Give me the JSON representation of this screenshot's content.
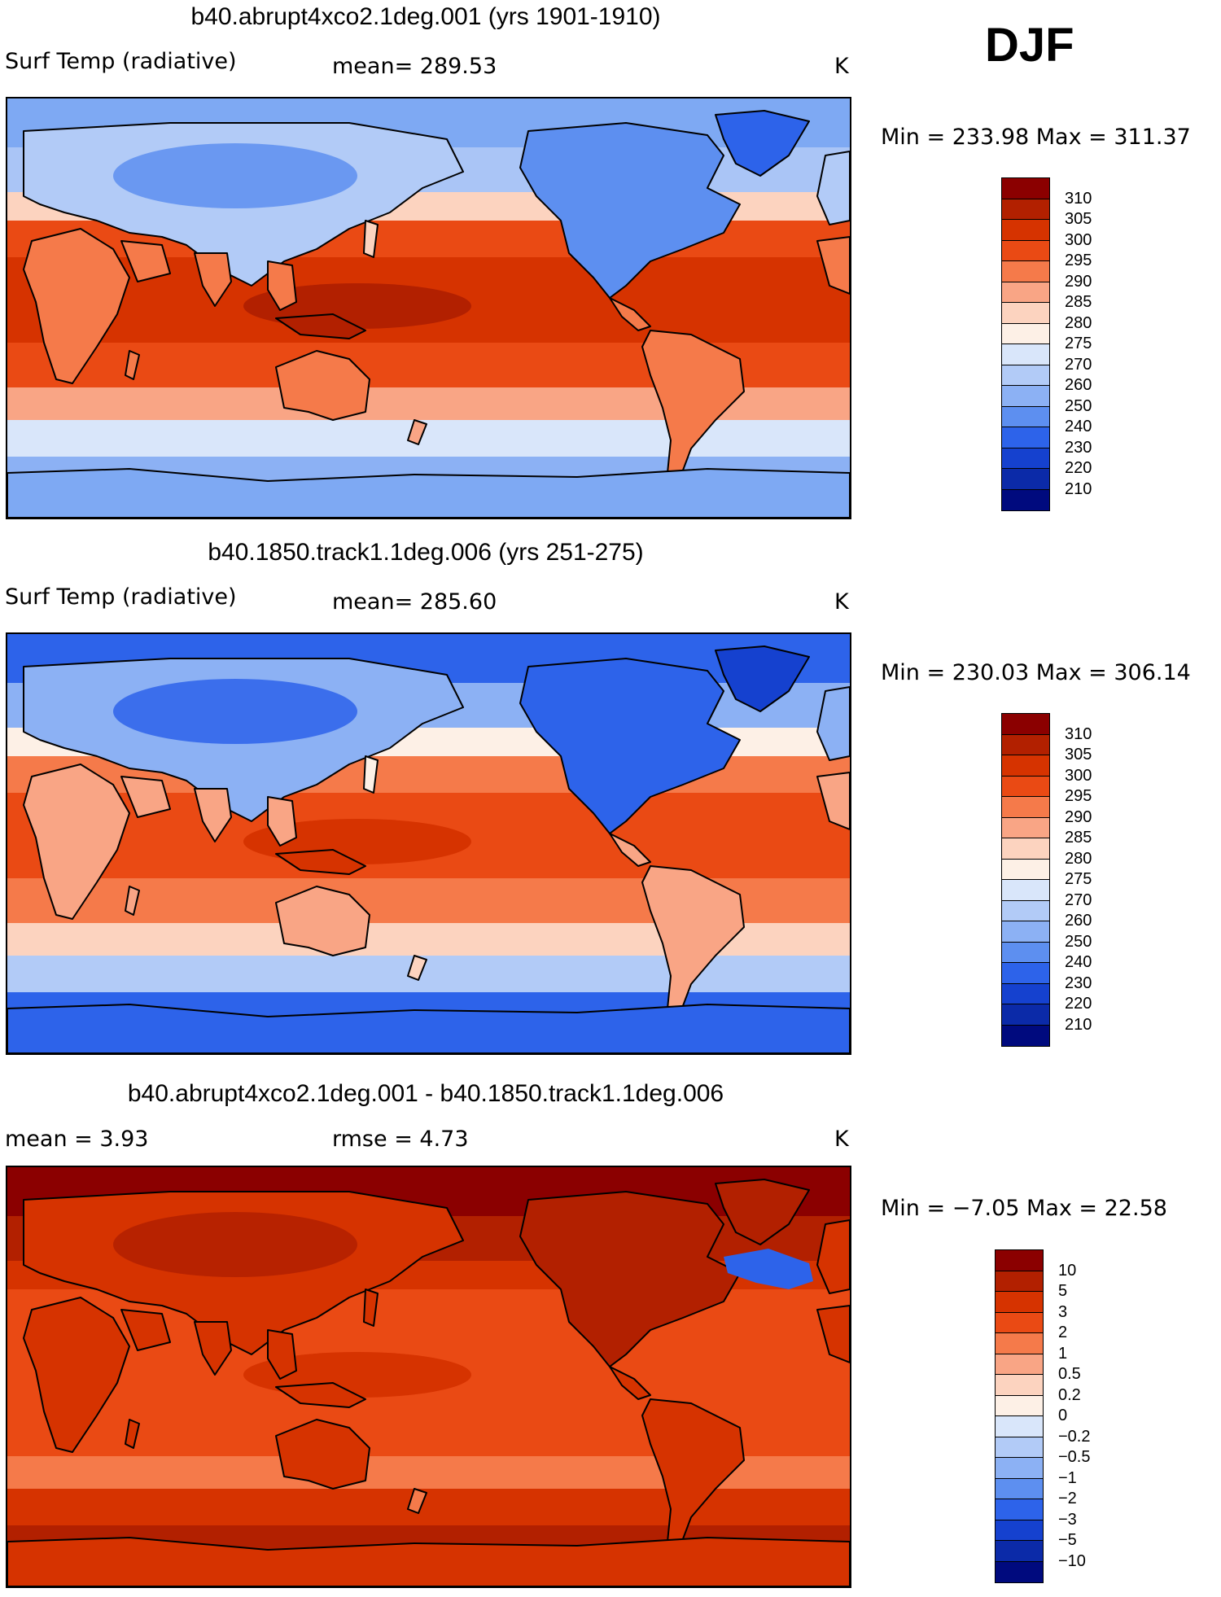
{
  "season": "DJF",
  "panels": [
    {
      "title": "b40.abrupt4xco2.1deg.001 (yrs 1901-1910)",
      "variable": "Surf Temp (radiative)",
      "stat1": "mean= 289.53",
      "stat2": "",
      "units": "K",
      "minmax": "Min = 233.98 Max = 311.37",
      "palette": "abs",
      "colorbar": {
        "labels": [
          "310",
          "305",
          "300",
          "295",
          "290",
          "285",
          "280",
          "275",
          "270",
          "260",
          "250",
          "240",
          "230",
          "220",
          "210"
        ],
        "colors": [
          "#8b0000",
          "#b22000",
          "#d63300",
          "#ea4a14",
          "#f57a4a",
          "#f9a585",
          "#fcd3bf",
          "#fdf0e6",
          "#d9e6fa",
          "#b2cbf7",
          "#8cb1f4",
          "#5d8ff0",
          "#2d63ea",
          "#1541cf",
          "#0b2aa8",
          "#000a7e"
        ]
      },
      "regions": {
        "polar_n": "#7ea9f3",
        "subpolar_n": "#aac5f6",
        "mid_n": "#fcd3bf",
        "warm_n": "#ea4a14",
        "tropics": "#d63300",
        "warm_pool": "#b22000",
        "warm_s": "#ea4a14",
        "mid_s": "#f9a585",
        "subpolar_s": "#d9e6fa",
        "polar_s": "#8cb1f4",
        "land_cold": "#5d8ff0",
        "land_cool": "#b2cbf7",
        "land_warm": "#f57a4a",
        "greenland": "#2d63ea",
        "antarctica": "#7ea9f3"
      }
    },
    {
      "title": "b40.1850.track1.1deg.006 (yrs 251-275)",
      "variable": "Surf Temp (radiative)",
      "stat1": "mean= 285.60",
      "stat2": "",
      "units": "K",
      "minmax": "Min = 230.03 Max = 306.14",
      "palette": "abs",
      "colorbar": {
        "labels": [
          "310",
          "305",
          "300",
          "295",
          "290",
          "285",
          "280",
          "275",
          "270",
          "260",
          "250",
          "240",
          "230",
          "220",
          "210"
        ],
        "colors": [
          "#8b0000",
          "#b22000",
          "#d63300",
          "#ea4a14",
          "#f57a4a",
          "#f9a585",
          "#fcd3bf",
          "#fdf0e6",
          "#d9e6fa",
          "#b2cbf7",
          "#8cb1f4",
          "#5d8ff0",
          "#2d63ea",
          "#1541cf",
          "#0b2aa8",
          "#000a7e"
        ]
      },
      "regions": {
        "polar_n": "#2d63ea",
        "subpolar_n": "#8cb1f4",
        "mid_n": "#fdf0e6",
        "warm_n": "#f57a4a",
        "tropics": "#ea4a14",
        "warm_pool": "#d63300",
        "warm_s": "#f57a4a",
        "mid_s": "#fcd3bf",
        "subpolar_s": "#b2cbf7",
        "polar_s": "#2d63ea",
        "land_cold": "#2d63ea",
        "land_cool": "#8cb1f4",
        "land_warm": "#f9a585",
        "greenland": "#1541cf",
        "antarctica": "#2d63ea"
      }
    },
    {
      "title": "b40.abrupt4xco2.1deg.001 - b40.1850.track1.1deg.006",
      "variable": "mean =    3.93",
      "stat1": "rmse =    4.73",
      "stat2": "",
      "units": "K",
      "minmax": "Min =  −7.05 Max =  22.58",
      "palette": "diff",
      "colorbar": {
        "labels": [
          "10",
          "5",
          "3",
          "2",
          "1",
          "0.5",
          "0.2",
          "0",
          "−0.2",
          "−0.5",
          "−1",
          "−2",
          "−3",
          "−5",
          "−10"
        ],
        "colors": [
          "#8b0000",
          "#b22000",
          "#d63300",
          "#ea4a14",
          "#f57a4a",
          "#f9a585",
          "#fcd3bf",
          "#fdf0e6",
          "#d9e6fa",
          "#b2cbf7",
          "#8cb1f4",
          "#5d8ff0",
          "#2d63ea",
          "#1541cf",
          "#0b2aa8",
          "#000a7e"
        ]
      },
      "regions": {
        "polar_n": "#8b0000",
        "subpolar_n": "#b22000",
        "mid_n": "#d63300",
        "warm_n": "#ea4a14",
        "tropics": "#ea4a14",
        "warm_pool": "#d63300",
        "warm_s": "#ea4a14",
        "mid_s": "#f57a4a",
        "subpolar_s": "#d63300",
        "polar_s": "#b22000",
        "land_cold": "#b22000",
        "land_cool": "#d63300",
        "land_warm": "#d63300",
        "greenland": "#b22000",
        "antarctica": "#d63300",
        "n_atlantic_anomaly": "#2d63ea"
      }
    }
  ]
}
